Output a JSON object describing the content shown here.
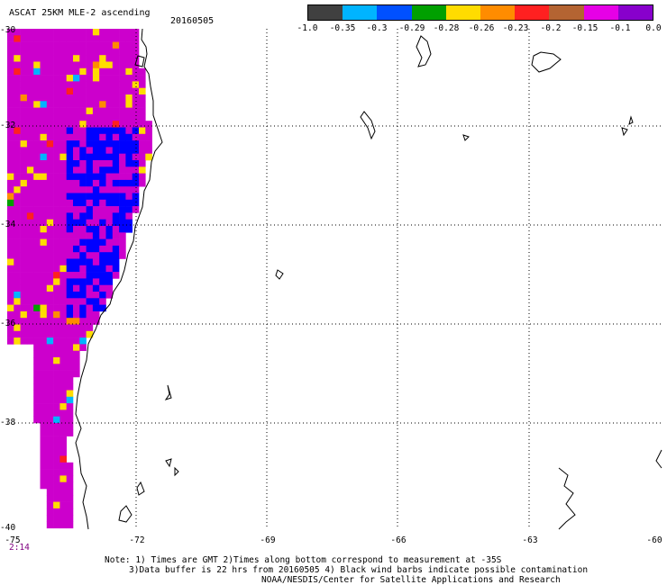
{
  "title": "ASCAT 25KM MLE-2 ascending",
  "date": "20160505",
  "colorbar": {
    "colors": [
      "#404040",
      "#00b4ff",
      "#0050ff",
      "#00a000",
      "#ffdc00",
      "#ff8c00",
      "#ff2020",
      "#b46432",
      "#e600e6",
      "#8800cc"
    ],
    "labels": [
      "-1.0",
      "-0.35",
      "-0.3",
      "-0.29",
      "-0.28",
      "-0.26",
      "-0.23",
      "-0.2",
      "-0.15",
      "-0.1",
      "0.0"
    ]
  },
  "axes": {
    "lat_labels": [
      "-30",
      "-32",
      "-34",
      "-36",
      "-38",
      "-40"
    ],
    "lon_labels": [
      "-75",
      "-72",
      "-69",
      "-66",
      "-63",
      "-60"
    ]
  },
  "time_label": "2:14",
  "notes": {
    "line1": "Note: 1) Times are GMT 2)Times along bottom correspond to measurement at -35S",
    "line2": "3)Data buffer is 22 hrs from 20160505 4) Black wind barbs indicate possible contamination",
    "line3": "NOAA/NESDIS/Center for Satellite Applications and Research"
  }
}
